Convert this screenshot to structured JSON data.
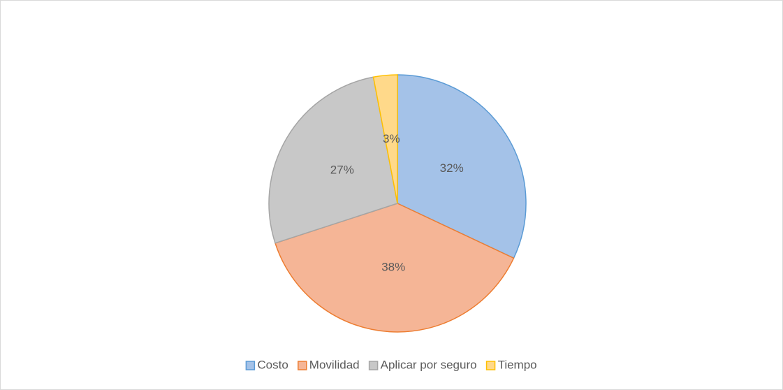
{
  "chart_data": {
    "type": "pie",
    "categories": [
      "Costo",
      "Movilidad",
      "Aplicar por seguro",
      "Tiempo"
    ],
    "values": [
      32,
      38,
      27,
      3
    ],
    "value_labels": [
      "32%",
      "38%",
      "27%",
      "3%"
    ],
    "colors": [
      "#a4c2e8",
      "#f5b596",
      "#c8c8c8",
      "#ffd98a"
    ],
    "stroke_colors": [
      "#5b9bd5",
      "#ed7d31",
      "#a5a5a5",
      "#ffc000"
    ],
    "legend": "bottom"
  }
}
